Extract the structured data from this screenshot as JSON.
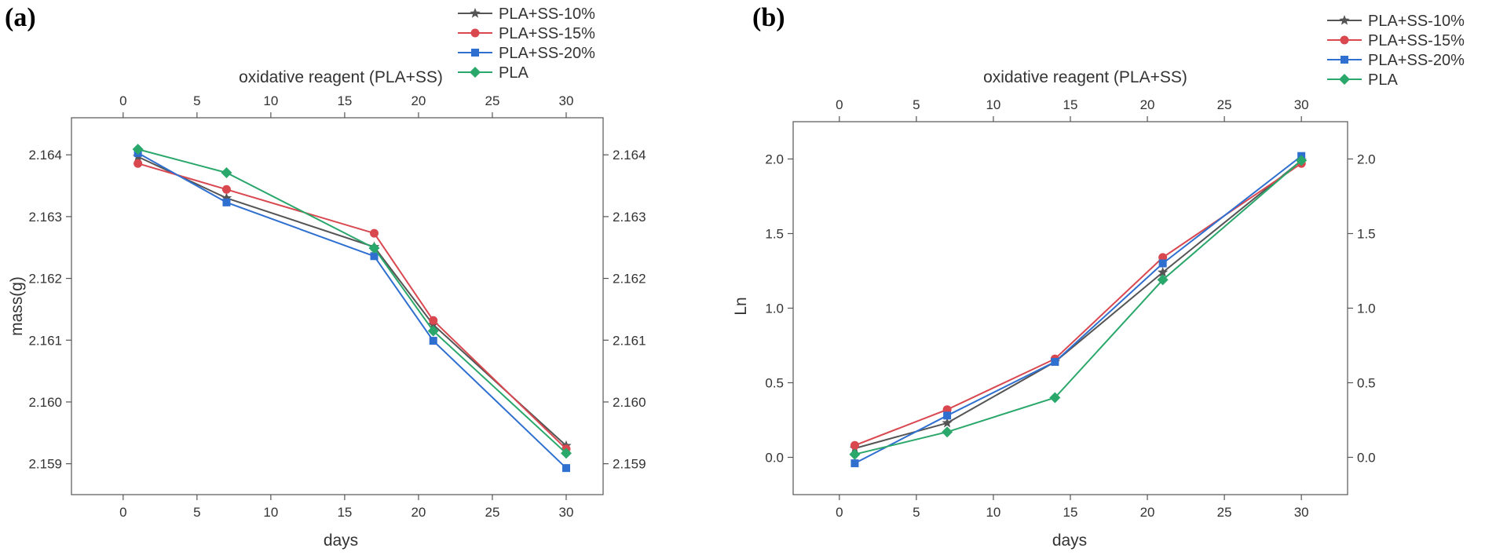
{
  "chart_data": [
    {
      "type": "line",
      "panel_label": "(a)",
      "title": "oxidative reagent (PLA+SS)",
      "xlabel": "days",
      "ylabel": "mass(g)",
      "xlim": [
        -3.5,
        32.5
      ],
      "ylim": [
        2.1585,
        2.1646
      ],
      "xticks": [
        0,
        5,
        10,
        15,
        20,
        25,
        30
      ],
      "yticks": [
        2.159,
        2.16,
        2.161,
        2.162,
        2.163,
        2.164
      ],
      "ytick_labels": [
        "2.159",
        "2.160",
        "2.161",
        "2.162",
        "2.163",
        "2.164"
      ],
      "legend_position": "top-right",
      "series": [
        {
          "name": "PLA+SS-10%",
          "color": "#555555",
          "marker": "star",
          "x": [
            1,
            7,
            17,
            21,
            30
          ],
          "y": [
            2.16397,
            2.1633,
            2.16251,
            2.16125,
            2.15929
          ]
        },
        {
          "name": "PLA+SS-15%",
          "color": "#d9474f",
          "marker": "circle",
          "x": [
            1,
            7,
            17,
            21,
            30
          ],
          "y": [
            2.16386,
            2.16344,
            2.16273,
            2.16132,
            2.15924
          ]
        },
        {
          "name": "PLA+SS-20%",
          "color": "#2e6fd0",
          "marker": "square",
          "x": [
            1,
            7,
            17,
            21,
            30
          ],
          "y": [
            2.16403,
            2.16323,
            2.16236,
            2.16099,
            2.15893
          ]
        },
        {
          "name": "PLA",
          "color": "#2aa76a",
          "marker": "diamond",
          "x": [
            1,
            7,
            17,
            21,
            30
          ],
          "y": [
            2.16409,
            2.16371,
            2.16249,
            2.16115,
            2.15917
          ]
        }
      ]
    },
    {
      "type": "line",
      "panel_label": "(b)",
      "title": "oxidative reagent (PLA+SS)",
      "xlabel": "days",
      "ylabel": "Ln",
      "xlim": [
        -3,
        33
      ],
      "ylim": [
        -0.25,
        2.25
      ],
      "xticks": [
        0,
        5,
        10,
        15,
        20,
        25,
        30
      ],
      "yticks": [
        0.0,
        0.5,
        1.0,
        1.5,
        2.0
      ],
      "ytick_labels": [
        "0.0",
        "0.5",
        "1.0",
        "1.5",
        "2.0"
      ],
      "legend_position": "top-right",
      "series": [
        {
          "name": "PLA+SS-10%",
          "color": "#555555",
          "marker": "star",
          "x": [
            1,
            7,
            14,
            21,
            30
          ],
          "y": [
            0.06,
            0.23,
            0.64,
            1.24,
            1.99
          ]
        },
        {
          "name": "PLA+SS-15%",
          "color": "#d9474f",
          "marker": "circle",
          "x": [
            1,
            7,
            14,
            21,
            30
          ],
          "y": [
            0.08,
            0.32,
            0.66,
            1.34,
            1.97
          ]
        },
        {
          "name": "PLA+SS-20%",
          "color": "#2e6fd0",
          "marker": "square",
          "x": [
            1,
            7,
            14,
            21,
            30
          ],
          "y": [
            -0.04,
            0.28,
            0.64,
            1.3,
            2.02
          ]
        },
        {
          "name": "PLA",
          "color": "#2aa76a",
          "marker": "diamond",
          "x": [
            1,
            7,
            14,
            21,
            30
          ],
          "y": [
            0.02,
            0.17,
            0.4,
            1.19,
            1.99
          ]
        }
      ]
    }
  ]
}
